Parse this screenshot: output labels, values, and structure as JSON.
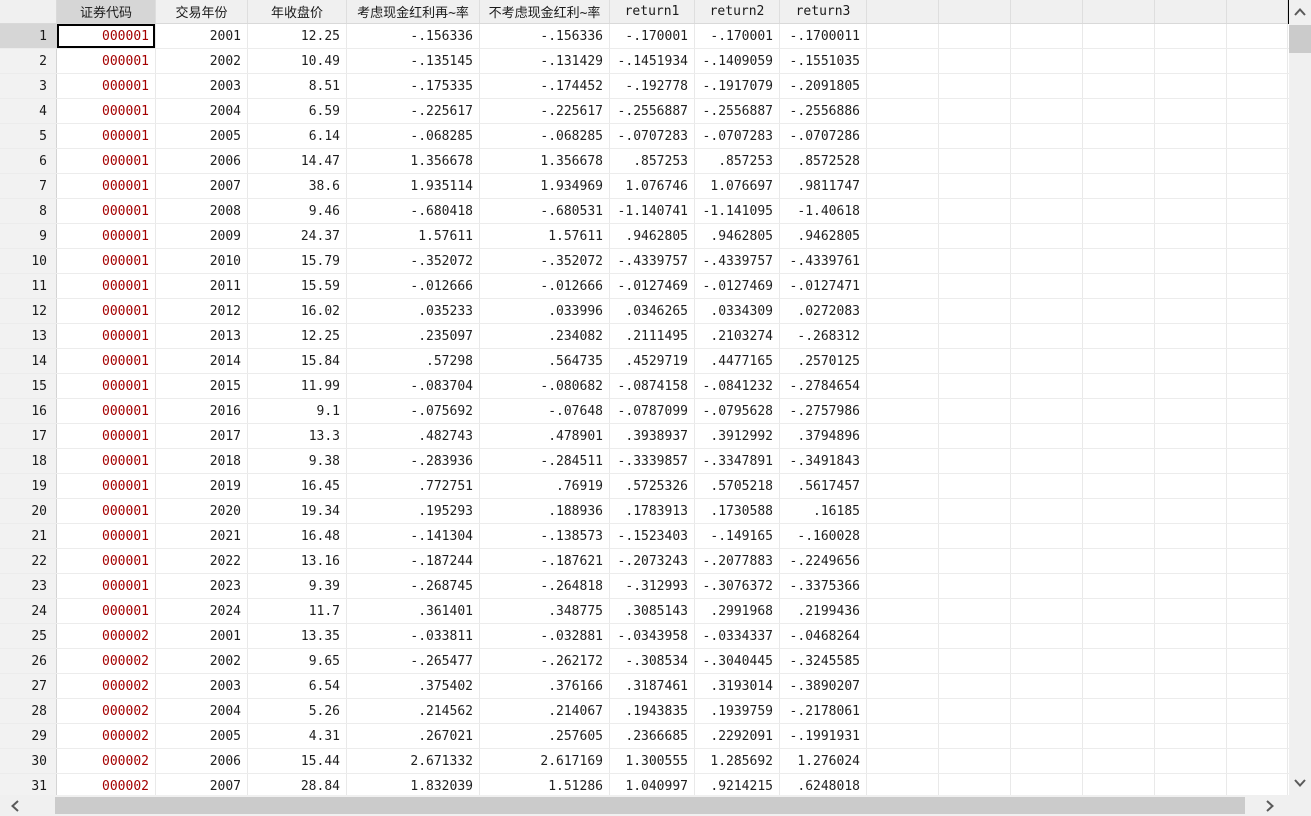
{
  "colors": {
    "string_value": "#a40000",
    "numeric_value": "#1f1f1f",
    "header_bg": "#f0f0f0",
    "active_header_bg": "#d6d6d6",
    "row_header_bg": "#f2f2f2",
    "active_row_header_bg": "#d6d6d6",
    "selection_border": "#000000",
    "scroll_track": "#f0f0f0",
    "scroll_thumb": "#cbcbcb",
    "scroll_arrow": "#5a5a5a"
  },
  "table": {
    "columns": [
      {
        "label": "证券代码",
        "type": "string"
      },
      {
        "label": "交易年份",
        "type": "numeric"
      },
      {
        "label": "年收盘价",
        "type": "numeric"
      },
      {
        "label": "考虑现金红利再~率",
        "type": "numeric"
      },
      {
        "label": "不考虑现金红利~率",
        "type": "numeric"
      },
      {
        "label": "return1",
        "type": "numeric"
      },
      {
        "label": "return2",
        "type": "numeric"
      },
      {
        "label": "return3",
        "type": "numeric"
      }
    ],
    "selection": {
      "row": "1",
      "column": "证券代码",
      "value": "000001"
    },
    "rows": [
      {
        "n": "1",
        "cells": [
          "000001",
          "2001",
          "12.25",
          "-.156336",
          "-.156336",
          "-.170001",
          "-.170001",
          "-.1700011"
        ]
      },
      {
        "n": "2",
        "cells": [
          "000001",
          "2002",
          "10.49",
          "-.135145",
          "-.131429",
          "-.1451934",
          "-.1409059",
          "-.1551035"
        ]
      },
      {
        "n": "3",
        "cells": [
          "000001",
          "2003",
          "8.51",
          "-.175335",
          "-.174452",
          "-.192778",
          "-.1917079",
          "-.2091805"
        ]
      },
      {
        "n": "4",
        "cells": [
          "000001",
          "2004",
          "6.59",
          "-.225617",
          "-.225617",
          "-.2556887",
          "-.2556887",
          "-.2556886"
        ]
      },
      {
        "n": "5",
        "cells": [
          "000001",
          "2005",
          "6.14",
          "-.068285",
          "-.068285",
          "-.0707283",
          "-.0707283",
          "-.0707286"
        ]
      },
      {
        "n": "6",
        "cells": [
          "000001",
          "2006",
          "14.47",
          "1.356678",
          "1.356678",
          ".857253",
          ".857253",
          ".8572528"
        ]
      },
      {
        "n": "7",
        "cells": [
          "000001",
          "2007",
          "38.6",
          "1.935114",
          "1.934969",
          "1.076746",
          "1.076697",
          ".9811747"
        ]
      },
      {
        "n": "8",
        "cells": [
          "000001",
          "2008",
          "9.46",
          "-.680418",
          "-.680531",
          "-1.140741",
          "-1.141095",
          "-1.40618"
        ]
      },
      {
        "n": "9",
        "cells": [
          "000001",
          "2009",
          "24.37",
          "1.57611",
          "1.57611",
          ".9462805",
          ".9462805",
          ".9462805"
        ]
      },
      {
        "n": "10",
        "cells": [
          "000001",
          "2010",
          "15.79",
          "-.352072",
          "-.352072",
          "-.4339757",
          "-.4339757",
          "-.4339761"
        ]
      },
      {
        "n": "11",
        "cells": [
          "000001",
          "2011",
          "15.59",
          "-.012666",
          "-.012666",
          "-.0127469",
          "-.0127469",
          "-.0127471"
        ]
      },
      {
        "n": "12",
        "cells": [
          "000001",
          "2012",
          "16.02",
          ".035233",
          ".033996",
          ".0346265",
          ".0334309",
          ".0272083"
        ]
      },
      {
        "n": "13",
        "cells": [
          "000001",
          "2013",
          "12.25",
          ".235097",
          ".234082",
          ".2111495",
          ".2103274",
          "-.268312"
        ]
      },
      {
        "n": "14",
        "cells": [
          "000001",
          "2014",
          "15.84",
          ".57298",
          ".564735",
          ".4529719",
          ".4477165",
          ".2570125"
        ]
      },
      {
        "n": "15",
        "cells": [
          "000001",
          "2015",
          "11.99",
          "-.083704",
          "-.080682",
          "-.0874158",
          "-.0841232",
          "-.2784654"
        ]
      },
      {
        "n": "16",
        "cells": [
          "000001",
          "2016",
          "9.1",
          "-.075692",
          "-.07648",
          "-.0787099",
          "-.0795628",
          "-.2757986"
        ]
      },
      {
        "n": "17",
        "cells": [
          "000001",
          "2017",
          "13.3",
          ".482743",
          ".478901",
          ".3938937",
          ".3912992",
          ".3794896"
        ]
      },
      {
        "n": "18",
        "cells": [
          "000001",
          "2018",
          "9.38",
          "-.283936",
          "-.284511",
          "-.3339857",
          "-.3347891",
          "-.3491843"
        ]
      },
      {
        "n": "19",
        "cells": [
          "000001",
          "2019",
          "16.45",
          ".772751",
          ".76919",
          ".5725326",
          ".5705218",
          ".5617457"
        ]
      },
      {
        "n": "20",
        "cells": [
          "000001",
          "2020",
          "19.34",
          ".195293",
          ".188936",
          ".1783913",
          ".1730588",
          ".16185"
        ]
      },
      {
        "n": "21",
        "cells": [
          "000001",
          "2021",
          "16.48",
          "-.141304",
          "-.138573",
          "-.1523403",
          "-.149165",
          "-.160028"
        ]
      },
      {
        "n": "22",
        "cells": [
          "000001",
          "2022",
          "13.16",
          "-.187244",
          "-.187621",
          "-.2073243",
          "-.2077883",
          "-.2249656"
        ]
      },
      {
        "n": "23",
        "cells": [
          "000001",
          "2023",
          "9.39",
          "-.268745",
          "-.264818",
          "-.312993",
          "-.3076372",
          "-.3375366"
        ]
      },
      {
        "n": "24",
        "cells": [
          "000001",
          "2024",
          "11.7",
          ".361401",
          ".348775",
          ".3085143",
          ".2991968",
          ".2199436"
        ]
      },
      {
        "n": "25",
        "cells": [
          "000002",
          "2001",
          "13.35",
          "-.033811",
          "-.032881",
          "-.0343958",
          "-.0334337",
          "-.0468264"
        ]
      },
      {
        "n": "26",
        "cells": [
          "000002",
          "2002",
          "9.65",
          "-.265477",
          "-.262172",
          "-.308534",
          "-.3040445",
          "-.3245585"
        ]
      },
      {
        "n": "27",
        "cells": [
          "000002",
          "2003",
          "6.54",
          ".375402",
          ".376166",
          ".3187461",
          ".3193014",
          "-.3890207"
        ]
      },
      {
        "n": "28",
        "cells": [
          "000002",
          "2004",
          "5.26",
          ".214562",
          ".214067",
          ".1943835",
          ".1939759",
          "-.2178061"
        ]
      },
      {
        "n": "29",
        "cells": [
          "000002",
          "2005",
          "4.31",
          ".267021",
          ".257605",
          ".2366685",
          ".2292091",
          "-.1991931"
        ]
      },
      {
        "n": "30",
        "cells": [
          "000002",
          "2006",
          "15.44",
          "2.671332",
          "2.617169",
          "1.300555",
          "1.285692",
          "1.276024"
        ]
      },
      {
        "n": "31",
        "cells": [
          "000002",
          "2007",
          "28.84",
          "1.832039",
          "1.51286",
          "1.040997",
          ".9214215",
          ".6248018"
        ]
      }
    ]
  }
}
